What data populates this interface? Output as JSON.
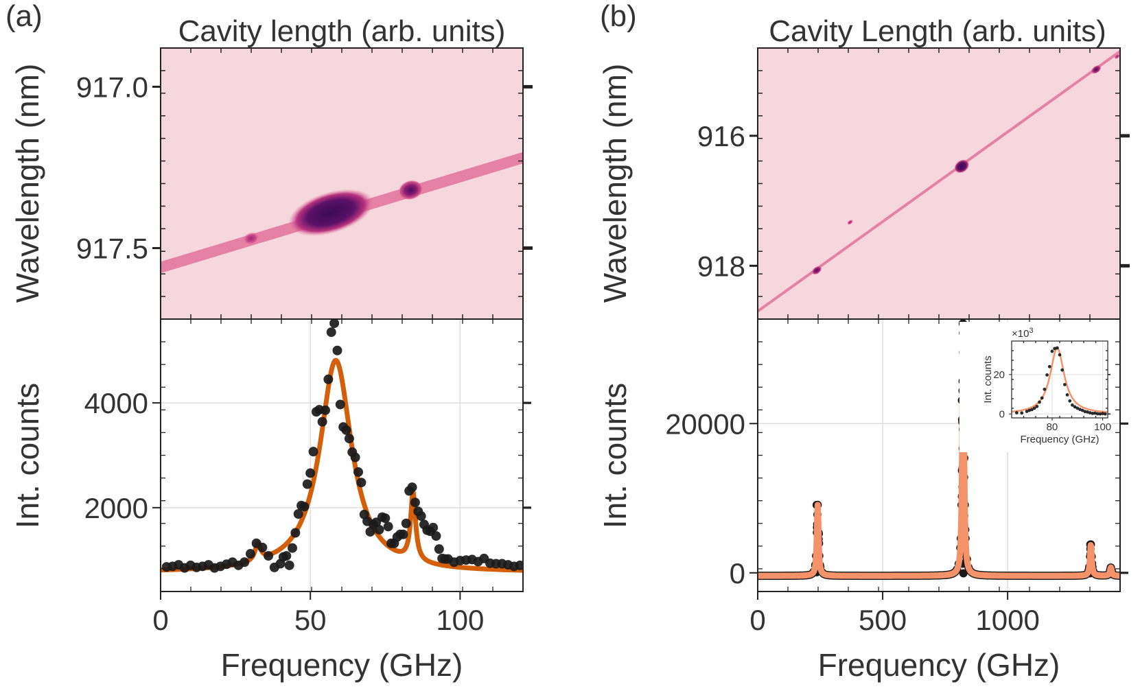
{
  "figure": {
    "panels": [
      {
        "label": "(a)"
      },
      {
        "label": "(b)"
      }
    ]
  },
  "colors": {
    "map_background": "#f6d7dd",
    "map_line": "#e4789e",
    "map_dark": "#3b0a52",
    "data_points": "#1a1a1a",
    "fit_a": "#d45f0a",
    "fit_b": "#f4936a",
    "grid": "#dddddd"
  },
  "chart_data": [
    {
      "id": "a_top",
      "type": "heatmap",
      "title": "Cavity length (arb. units)",
      "ylabel": "Wavelength (nm)",
      "yticks": [
        "917.0",
        "917.5"
      ],
      "ytick_values": [
        917.0,
        917.5
      ],
      "ylim": [
        917.72,
        916.88
      ],
      "xlim": [
        0,
        1
      ],
      "colormap": "white-pink-purple",
      "features": {
        "line": {
          "x": [
            0,
            1
          ],
          "y": [
            917.56,
            917.22
          ]
        },
        "spots": [
          {
            "x": 0.25,
            "y": 917.47,
            "intensity": "low"
          },
          {
            "x": 0.47,
            "y": 917.39,
            "intensity": "high"
          },
          {
            "x": 0.69,
            "y": 917.32,
            "intensity": "medium"
          }
        ]
      }
    },
    {
      "id": "a_bottom",
      "type": "scatter",
      "xlabel": "Frequency (GHz)",
      "ylabel": "Int. counts",
      "xlim": [
        0,
        121
      ],
      "ylim": [
        400,
        5600
      ],
      "xticks": [
        0,
        50,
        100
      ],
      "yticks": [
        2000,
        4000
      ],
      "grid": true,
      "series": [
        {
          "kind": "points",
          "x": [
            2,
            4,
            6,
            8,
            10,
            12,
            14,
            16,
            18,
            20,
            22,
            24,
            26,
            28,
            30,
            32,
            34,
            36,
            38,
            40,
            41,
            42,
            43,
            44,
            45,
            46,
            47,
            48,
            49,
            50,
            51,
            52,
            53,
            54,
            55,
            56,
            57,
            58,
            59,
            60,
            61,
            62,
            63,
            64,
            65,
            66,
            67,
            68,
            69,
            70,
            71,
            72,
            73,
            74,
            75,
            76,
            77,
            78,
            79,
            80,
            81,
            82,
            83,
            84,
            85,
            86,
            87,
            88,
            89,
            90,
            91,
            92,
            93,
            94,
            95,
            96,
            98,
            100,
            102,
            104,
            106,
            108,
            110,
            112,
            114,
            116,
            118,
            120
          ],
          "y": [
            870,
            880,
            910,
            850,
            900,
            860,
            880,
            910,
            850,
            880,
            920,
            960,
            900,
            960,
            1120,
            1320,
            1240,
            1080,
            860,
            930,
            1060,
            1080,
            900,
            1230,
            1520,
            1880,
            2040,
            2020,
            2450,
            2660,
            3070,
            3830,
            3870,
            3640,
            3860,
            4450,
            5350,
            5520,
            5000,
            3970,
            3540,
            3480,
            3320,
            3060,
            2960,
            2680,
            2480,
            1870,
            1740,
            1540,
            1680,
            1720,
            1580,
            1820,
            1800,
            1640,
            1320,
            1320,
            1440,
            1490,
            1490,
            1700,
            2320,
            2390,
            2100,
            1930,
            1840,
            1680,
            1570,
            1550,
            1620,
            1460,
            1210,
            1030,
            1020,
            1020,
            960,
            990,
            1000,
            1010,
            970,
            1030,
            940,
            930,
            930,
            910,
            880,
            900
          ]
        },
        {
          "kind": "fit",
          "peaks": [
            {
              "center": 32.5,
              "amplitude": 320,
              "width": 1.2
            },
            {
              "center": 58.5,
              "amplitude": 4050,
              "width": 6.5
            },
            {
              "center": 84.3,
              "amplitude": 1300,
              "width": 1.0
            }
          ],
          "baseline": 760
        }
      ]
    },
    {
      "id": "b_top",
      "type": "heatmap",
      "title": "Cavity Length (arb. units)",
      "ylabel": "Wavelength (nm)",
      "yticks": [
        "916",
        "918"
      ],
      "ytick_values": [
        916,
        918
      ],
      "ylim": [
        918.82,
        914.65
      ],
      "xlim": [
        0,
        1
      ],
      "colormap": "white-pink-purple",
      "features": {
        "line": {
          "x": [
            0,
            1
          ],
          "y": [
            918.7,
            914.7
          ]
        },
        "spots": [
          {
            "x": 0.163,
            "y": 918.07,
            "intensity": "medium"
          },
          {
            "x": 0.563,
            "y": 916.47,
            "intensity": "high"
          },
          {
            "x": 0.934,
            "y": 914.98,
            "intensity": "medium"
          },
          {
            "x": 0.992,
            "y": 914.78,
            "intensity": "low"
          },
          {
            "x": 0.255,
            "y": 917.33,
            "intensity": "low"
          }
        ]
      }
    },
    {
      "id": "b_bottom",
      "type": "scatter",
      "xlabel": "Frequency (GHz)",
      "ylabel": "Int. counts",
      "xlim": [
        0,
        1450
      ],
      "ylim": [
        -2500,
        34000
      ],
      "xticks": [
        0,
        500,
        1000
      ],
      "yticks": [
        0,
        20000
      ],
      "grid": true,
      "series": [
        {
          "kind": "fit",
          "peaks": [
            {
              "center": 240,
              "amplitude": 9500,
              "width": 4
            },
            {
              "center": 822,
              "amplitude": 33800,
              "width": 4
            },
            {
              "center": 1333,
              "amplitude": 4200,
              "width": 4
            },
            {
              "center": 1413,
              "amplitude": 1100,
              "width": 4
            }
          ],
          "baseline": -400
        }
      ],
      "inset": {
        "type": "scatter",
        "xlabel": "Frequency (GHz)",
        "ylabel": "Int. counts",
        "multiplier": "×10",
        "multiplier_exp": "3",
        "xlim": [
          64,
          102
        ],
        "ylim": [
          -2,
          37
        ],
        "xticks": [
          80,
          100
        ],
        "yticks": [
          0,
          20
        ],
        "grid": true,
        "series": [
          {
            "kind": "points",
            "x": [
              66,
              68,
              70,
              71,
              72,
              73,
              74,
              75,
              76,
              77,
              78,
              79,
              80,
              81,
              82,
              83,
              84,
              85,
              86,
              87,
              88,
              89,
              90,
              91,
              92,
              93,
              94,
              95,
              96,
              97,
              98,
              99,
              100,
              101
            ],
            "y": [
              0.6,
              0.5,
              1.3,
              1.8,
              2.2,
              2.9,
              3.8,
              6.0,
              8.1,
              12.5,
              19.8,
              24.0,
              31.8,
              33.2,
              33.5,
              30.0,
              22.3,
              14.9,
              9.7,
              6.6,
              4.5,
              3.6,
              2.9,
              2.3,
              1.8,
              1.2,
              1.0,
              0.6,
              0.3,
              0.4,
              0.1,
              0.0,
              0.2,
              0.0
            ]
          },
          {
            "kind": "fit",
            "peaks": [
              {
                "center": 82.0,
                "amplitude": 33.5,
                "width": 3.4
              }
            ],
            "baseline": 0
          }
        ]
      }
    }
  ]
}
